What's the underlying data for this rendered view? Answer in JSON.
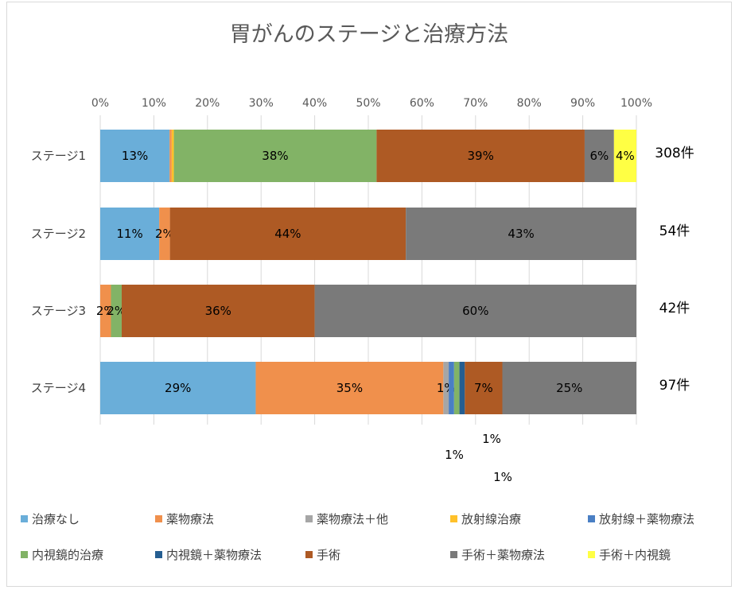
{
  "chart_data": {
    "type": "bar",
    "orientation": "horizontal",
    "stacked": "percent",
    "title": "胃がんのステージと治療方法",
    "xlim": [
      0,
      100
    ],
    "x_ticks": [
      "0%",
      "10%",
      "20%",
      "30%",
      "40%",
      "50%",
      "60%",
      "70%",
      "80%",
      "90%",
      "100%"
    ],
    "x_tick_values": [
      0,
      10,
      20,
      30,
      40,
      50,
      60,
      70,
      80,
      90,
      100
    ],
    "categories": [
      "ステージ1",
      "ステージ2",
      "ステージ3",
      "ステージ4"
    ],
    "counts": [
      "308件",
      "54件",
      "42件",
      "97件"
    ],
    "grid": true,
    "legend_position": "bottom",
    "series": [
      {
        "name": "治療なし",
        "color": "#6aaed9",
        "values": [
          13,
          11,
          0,
          29
        ],
        "labels": [
          "13%",
          "11%",
          "",
          "29%"
        ]
      },
      {
        "name": "薬物療法",
        "color": "#f0904c",
        "values": [
          0.4,
          2,
          2,
          35
        ],
        "labels": [
          "",
          "2%",
          "2%",
          "35%"
        ]
      },
      {
        "name": "薬物療法＋他",
        "color": "#a6a6a6",
        "values": [
          0,
          0,
          0,
          1
        ],
        "labels": [
          "",
          "",
          "",
          "1%"
        ]
      },
      {
        "name": "放射線治療",
        "color": "#ffc12a",
        "values": [
          0.4,
          0,
          0,
          0
        ],
        "labels": [
          "",
          "",
          "",
          ""
        ]
      },
      {
        "name": "放射線＋薬物療法",
        "color": "#4a7fc4",
        "values": [
          0,
          0,
          0,
          1
        ],
        "labels": [
          "",
          "",
          "",
          ""
        ]
      },
      {
        "name": "内視鏡的治療",
        "color": "#82b366",
        "values": [
          38,
          0,
          2,
          1
        ],
        "labels": [
          "38%",
          "",
          "2%",
          ""
        ]
      },
      {
        "name": "内視鏡＋薬物療法",
        "color": "#255e91",
        "values": [
          0,
          0,
          0,
          1
        ],
        "labels": [
          "",
          "",
          "",
          ""
        ]
      },
      {
        "name": "手術",
        "color": "#ae5a24",
        "values": [
          39,
          44,
          36,
          7
        ],
        "labels": [
          "39%",
          "44%",
          "36%",
          "7%"
        ]
      },
      {
        "name": "手術＋薬物療法",
        "color": "#7a7a7a",
        "values": [
          5.5,
          43,
          60,
          25
        ],
        "labels": [
          "6%",
          "43%",
          "60%",
          "25%"
        ]
      },
      {
        "name": "手術＋内視鏡",
        "color": "#ffff44",
        "values": [
          4.2,
          0,
          0,
          0
        ],
        "labels": [
          "4%",
          "",
          "",
          ""
        ]
      }
    ],
    "annotations": [
      "1%",
      "1%",
      "1%"
    ]
  }
}
